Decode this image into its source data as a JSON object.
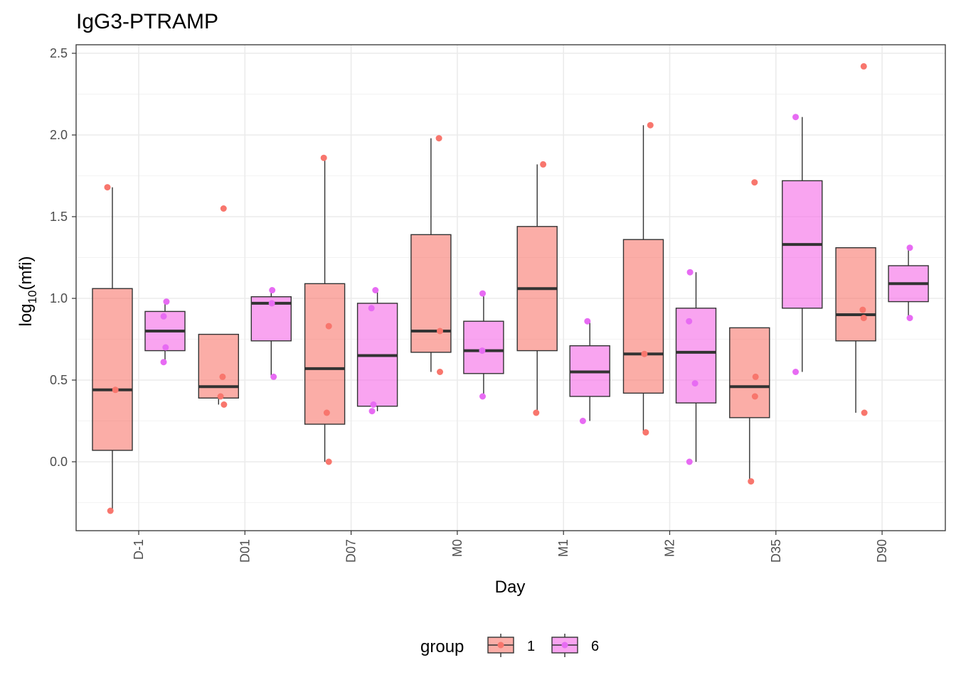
{
  "chart_data": {
    "type": "box",
    "title": "IgG3-PTRAMP",
    "xlabel": "Day",
    "ylabel": "log10(mfi)",
    "ylabel_base": "log",
    "ylabel_sub": "10",
    "ylabel_arg": "(mfi)",
    "categories": [
      "D-1",
      "D01",
      "D07",
      "M0",
      "M1",
      "M2",
      "D35",
      "D90"
    ],
    "ylim": [
      -0.43,
      2.54
    ],
    "yticks": [
      "0.0",
      "0.5",
      "1.0",
      "1.5",
      "2.0",
      "2.5"
    ],
    "ytick_values": [
      0.0,
      0.5,
      1.0,
      1.5,
      2.0,
      2.5
    ],
    "grid": true,
    "legend": {
      "title": "group",
      "position": "bottom",
      "entries": [
        "1",
        "6"
      ]
    },
    "series": [
      {
        "name": "1",
        "color": "#F8766D",
        "box_fill": "#F8766D",
        "boxes": [
          {
            "category": "D-1",
            "whisker_low": -0.3,
            "q1": 0.07,
            "median": 0.44,
            "q3": 1.06,
            "whisker_high": 1.68,
            "points": [
              {
                "y": 1.68,
                "jit": -0.25
              },
              {
                "y": 0.44,
                "jit": 0.15
              },
              {
                "y": -0.3,
                "jit": -0.1
              }
            ]
          },
          {
            "category": "D01",
            "whisker_low": 0.35,
            "q1": 0.39,
            "median": 0.46,
            "q3": 0.78,
            "whisker_high": 0.78,
            "points": [
              {
                "y": 1.55,
                "jit": 0.25
              },
              {
                "y": 0.52,
                "jit": 0.2
              },
              {
                "y": 0.4,
                "jit": 0.1
              },
              {
                "y": 0.35,
                "jit": 0.27
              }
            ]
          },
          {
            "category": "D07",
            "whisker_low": 0.0,
            "q1": 0.23,
            "median": 0.57,
            "q3": 1.09,
            "whisker_high": 1.86,
            "points": [
              {
                "y": 1.86,
                "jit": -0.05
              },
              {
                "y": 0.83,
                "jit": 0.2
              },
              {
                "y": 0.3,
                "jit": 0.1
              },
              {
                "y": 0.0,
                "jit": 0.2
              }
            ]
          },
          {
            "category": "M0",
            "whisker_low": 0.55,
            "q1": 0.67,
            "median": 0.8,
            "q3": 1.39,
            "whisker_high": 1.98,
            "points": [
              {
                "y": 1.98,
                "jit": 0.4
              },
              {
                "y": 0.8,
                "jit": 0.45
              },
              {
                "y": 0.55,
                "jit": 0.45
              }
            ]
          },
          {
            "category": "M1",
            "whisker_low": 0.3,
            "q1": 0.68,
            "median": 1.06,
            "q3": 1.44,
            "whisker_high": 1.82,
            "points": [
              {
                "y": 1.82,
                "jit": 0.3
              },
              {
                "y": 0.3,
                "jit": -0.05
              }
            ]
          },
          {
            "category": "M2",
            "whisker_low": 0.18,
            "q1": 0.42,
            "median": 0.66,
            "q3": 1.36,
            "whisker_high": 2.06,
            "points": [
              {
                "y": 2.06,
                "jit": 0.35
              },
              {
                "y": 0.66,
                "jit": 0.05
              },
              {
                "y": 0.18,
                "jit": 0.12
              }
            ]
          },
          {
            "category": "D35",
            "whisker_low": -0.12,
            "q1": 0.27,
            "median": 0.46,
            "q3": 0.82,
            "whisker_high": 0.82,
            "points": [
              {
                "y": 1.71,
                "jit": 0.25
              },
              {
                "y": 0.52,
                "jit": 0.3
              },
              {
                "y": 0.4,
                "jit": 0.27
              },
              {
                "y": -0.12,
                "jit": 0.07
              }
            ]
          },
          {
            "category": "D90",
            "whisker_low": 0.3,
            "q1": 0.74,
            "median": 0.9,
            "q3": 1.31,
            "whisker_high": 1.31,
            "points": [
              {
                "y": 2.42,
                "jit": 0.4
              },
              {
                "y": 0.93,
                "jit": 0.35
              },
              {
                "y": 0.88,
                "jit": 0.4
              },
              {
                "y": 0.3,
                "jit": 0.43
              }
            ]
          }
        ]
      },
      {
        "name": "6",
        "color": "#E76BF3",
        "box_fill": "#F568E6",
        "boxes": [
          {
            "category": "D-1",
            "whisker_low": 0.61,
            "q1": 0.68,
            "median": 0.8,
            "q3": 0.92,
            "whisker_high": 0.98,
            "points": [
              {
                "y": 0.98,
                "jit": 0.07
              },
              {
                "y": 0.89,
                "jit": -0.07
              },
              {
                "y": 0.7,
                "jit": 0.03
              },
              {
                "y": 0.61,
                "jit": -0.07
              }
            ]
          },
          {
            "category": "D01",
            "whisker_low": 0.52,
            "q1": 0.74,
            "median": 0.97,
            "q3": 1.01,
            "whisker_high": 1.05,
            "points": [
              {
                "y": 1.05,
                "jit": 0.05
              },
              {
                "y": 0.97,
                "jit": 0.03
              },
              {
                "y": 0.52,
                "jit": 0.12
              }
            ]
          },
          {
            "category": "D07",
            "whisker_low": 0.31,
            "q1": 0.34,
            "median": 0.65,
            "q3": 0.97,
            "whisker_high": 1.05,
            "points": [
              {
                "y": 1.05,
                "jit": -0.1
              },
              {
                "y": 0.94,
                "jit": -0.3
              },
              {
                "y": 0.35,
                "jit": -0.2
              },
              {
                "y": 0.31,
                "jit": -0.27
              }
            ]
          },
          {
            "category": "M0",
            "whisker_low": 0.4,
            "q1": 0.54,
            "median": 0.68,
            "q3": 0.86,
            "whisker_high": 1.03,
            "points": [
              {
                "y": 1.03,
                "jit": -0.05
              },
              {
                "y": 0.68,
                "jit": -0.07
              },
              {
                "y": 0.4,
                "jit": -0.05
              }
            ]
          },
          {
            "category": "M1",
            "whisker_low": 0.25,
            "q1": 0.4,
            "median": 0.55,
            "q3": 0.71,
            "whisker_high": 0.86,
            "points": [
              {
                "y": 0.86,
                "jit": -0.12
              },
              {
                "y": 0.25,
                "jit": -0.35
              }
            ]
          },
          {
            "category": "M2",
            "whisker_low": 0.0,
            "q1": 0.36,
            "median": 0.67,
            "q3": 0.94,
            "whisker_high": 1.16,
            "points": [
              {
                "y": 1.16,
                "jit": -0.3
              },
              {
                "y": 0.86,
                "jit": -0.35
              },
              {
                "y": 0.48,
                "jit": -0.05
              },
              {
                "y": 0.0,
                "jit": -0.33
              }
            ]
          },
          {
            "category": "D35",
            "whisker_low": 0.55,
            "q1": 0.94,
            "median": 1.33,
            "q3": 1.72,
            "whisker_high": 2.11,
            "points": [
              {
                "y": 2.11,
                "jit": -0.33
              },
              {
                "y": 0.55,
                "jit": -0.33
              }
            ]
          },
          {
            "category": "D90",
            "whisker_low": 0.88,
            "q1": 0.98,
            "median": 1.09,
            "q3": 1.2,
            "whisker_high": 1.31,
            "points": [
              {
                "y": 1.31,
                "jit": 0.07
              },
              {
                "y": 0.88,
                "jit": 0.07
              }
            ]
          }
        ]
      }
    ]
  }
}
